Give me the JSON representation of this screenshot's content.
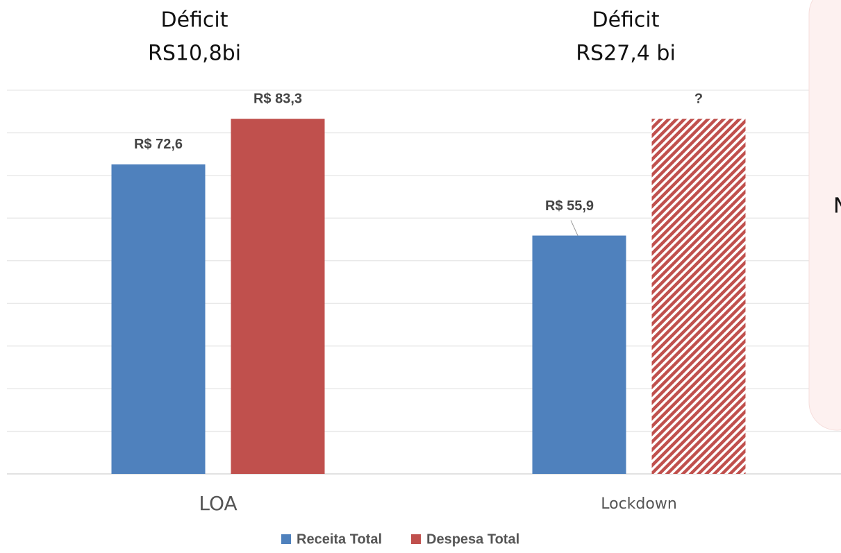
{
  "chart_data": {
    "type": "bar",
    "categories": [
      "LOA",
      "Lockdown"
    ],
    "series": [
      {
        "name": "Receita Total",
        "color": "#4f81bd",
        "values": [
          72.6,
          55.9
        ],
        "value_labels": [
          "R$ 72,6",
          "R$ 55,9"
        ],
        "hatched": [
          false,
          false
        ]
      },
      {
        "name": "Despesa Total",
        "color": "#c0504d",
        "values": [
          83.3,
          83.3
        ],
        "value_labels": [
          "R$ 83,3",
          "?"
        ],
        "hatched": [
          false,
          true
        ]
      }
    ],
    "annotations": [
      [
        "Déficit",
        "RS10,8bi"
      ],
      [
        "Déficit",
        "RS27,4 bi"
      ]
    ],
    "ylim": [
      0,
      90
    ],
    "yticks": [
      0,
      10,
      20,
      30,
      40,
      50,
      60,
      70,
      80,
      90
    ],
    "grid": true,
    "legend": "bottom"
  },
  "side_panel": {
    "text": "N"
  }
}
